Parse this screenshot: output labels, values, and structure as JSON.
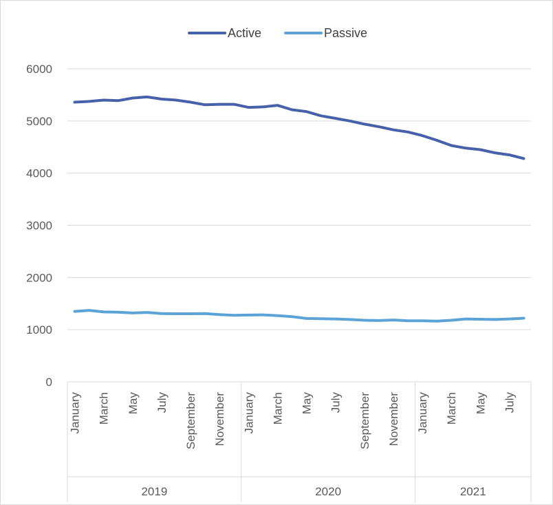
{
  "chart_data": {
    "type": "line",
    "title": "",
    "xlabel": "",
    "ylabel": "",
    "ylim": [
      0,
      6000
    ],
    "yticks": [
      "0",
      "1000",
      "2000",
      "3000",
      "4000",
      "5000",
      "6000"
    ],
    "grid": true,
    "legend_position": "top",
    "x_labels": [
      "January",
      "",
      "March",
      "",
      "May",
      "",
      "July",
      "",
      "September",
      "",
      "November",
      "",
      "January",
      "",
      "March",
      "",
      "May",
      "",
      "July",
      "",
      "September",
      "",
      "November",
      "",
      "January",
      "",
      "March",
      "",
      "May",
      "",
      "July",
      ""
    ],
    "years": [
      {
        "label": "2019",
        "months": 12
      },
      {
        "label": "2020",
        "months": 12
      },
      {
        "label": "2021",
        "months": 8
      }
    ],
    "series": [
      {
        "name": "Active",
        "color": "#4660AA",
        "values": [
          5360,
          5375,
          5400,
          5390,
          5440,
          5460,
          5420,
          5400,
          5360,
          5310,
          5320,
          5320,
          5260,
          5270,
          5300,
          5215,
          5180,
          5100,
          5050,
          5000,
          4940,
          4890,
          4830,
          4790,
          4720,
          4630,
          4530,
          4480,
          4450,
          4390,
          4350,
          4280
        ]
      },
      {
        "name": "Passive",
        "color": "#5BA3D6",
        "values": [
          1350,
          1370,
          1340,
          1335,
          1320,
          1330,
          1310,
          1305,
          1305,
          1310,
          1290,
          1275,
          1280,
          1285,
          1270,
          1250,
          1215,
          1210,
          1205,
          1195,
          1180,
          1175,
          1185,
          1170,
          1170,
          1165,
          1180,
          1205,
          1200,
          1195,
          1205,
          1220
        ]
      }
    ]
  }
}
